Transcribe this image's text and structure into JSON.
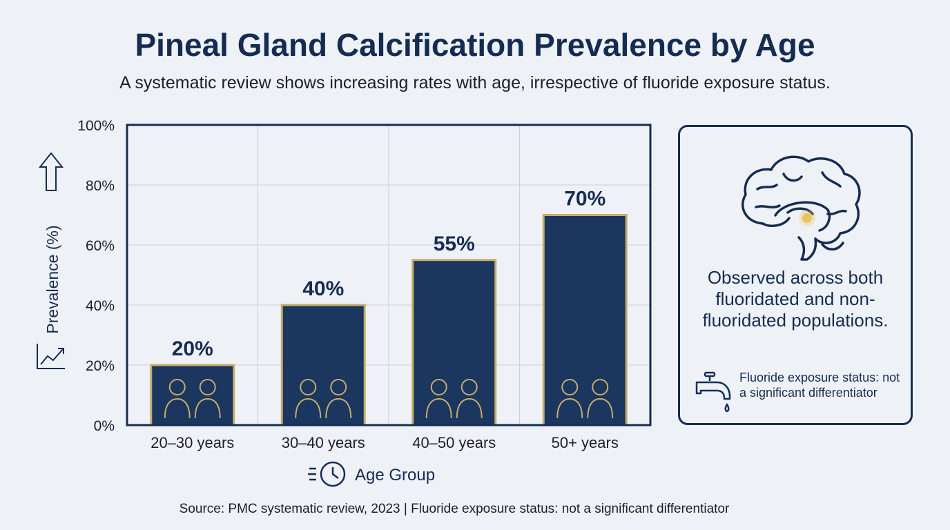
{
  "header": {
    "title": "Pineal Gland Calcification Prevalence by Age",
    "subtitle": "A systematic review shows increasing rates with age, irrespective of fluoride exposure status."
  },
  "side_panel": {
    "statement": "Observed across both fluoridated and non-fluoridated populations.",
    "note": "Fluoride exposure status: not a significant differentiator",
    "icons": [
      "brain-icon",
      "faucet-icon"
    ]
  },
  "footer": {
    "source": "Source: PMC systematic review, 2023 | Fluoride exposure status: not a significant differentiator"
  },
  "colors": {
    "bar_fill": "#1b365f",
    "bar_outline": "#c6ad6a",
    "axis": "#152c52",
    "grid": "#c9d0da",
    "pineal_highlight": "#e8c25c"
  },
  "chart_data": {
    "type": "bar",
    "categories": [
      "20–30 years",
      "30–40 years",
      "40–50 years",
      "50+ years"
    ],
    "values": [
      20,
      40,
      55,
      70
    ],
    "value_labels": [
      "20%",
      "40%",
      "55%",
      "70%"
    ],
    "xlabel": "Age Group",
    "ylabel": "Prevalence (%)",
    "ylim": [
      0,
      100
    ],
    "yticks": [
      "0%",
      "20%",
      "40%",
      "60%",
      "80%",
      "100%"
    ],
    "grid": true,
    "bar_icons": [
      "young-adults-icon",
      "professionals-icon",
      "older-adults-icon",
      "elderly-icon"
    ]
  }
}
